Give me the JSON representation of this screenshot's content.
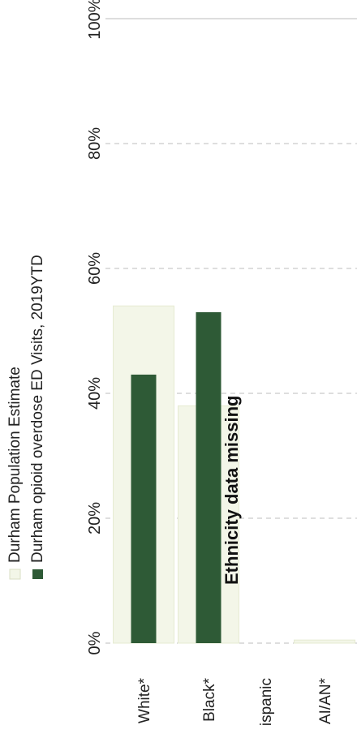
{
  "chart_data": {
    "type": "bar",
    "orientation": "horizontal",
    "rotated": "90deg-counterclockwise",
    "categories": [
      "White*",
      "Black*",
      "ispanic",
      "AI/AN*"
    ],
    "series": [
      {
        "name": "Durham Population Estimate",
        "color": "#f3f6e8",
        "values": [
          54,
          38,
          null,
          0.5
        ]
      },
      {
        "name": "Durham opioid overdose ED Visits, 2019YTD",
        "color": "#2e5a36",
        "values": [
          43,
          53,
          null,
          0
        ]
      }
    ],
    "x_ticks": [
      "0%",
      "20%",
      "40%",
      "60%",
      "80%",
      "100%"
    ],
    "xlim": [
      0,
      100
    ],
    "unit": "%",
    "annotation": "Ethnicity data missing",
    "legend_position": "top"
  }
}
